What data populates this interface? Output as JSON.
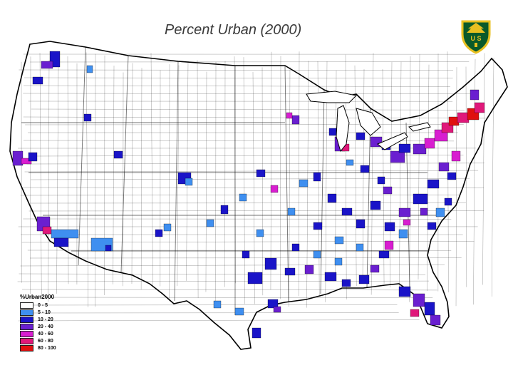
{
  "title": "Percent Urban (2000)",
  "logo": {
    "icon": "forest-service-shield-icon",
    "text": "U S"
  },
  "legend": {
    "title": "%Urban2000",
    "classes": [
      {
        "label": "0 - 5",
        "color": "#ffffff"
      },
      {
        "label": "5 - 10",
        "color": "#3f8ff0"
      },
      {
        "label": "10 - 20",
        "color": "#1a14c8"
      },
      {
        "label": "20 - 40",
        "color": "#6a1fd0"
      },
      {
        "label": "40 - 60",
        "color": "#d81ed0"
      },
      {
        "label": "60 - 80",
        "color": "#e0187a"
      },
      {
        "label": "80 - 100",
        "color": "#e01010"
      }
    ]
  },
  "map": {
    "region": "Conterminous United States",
    "unit": "county",
    "outline_color": "#000000"
  }
}
